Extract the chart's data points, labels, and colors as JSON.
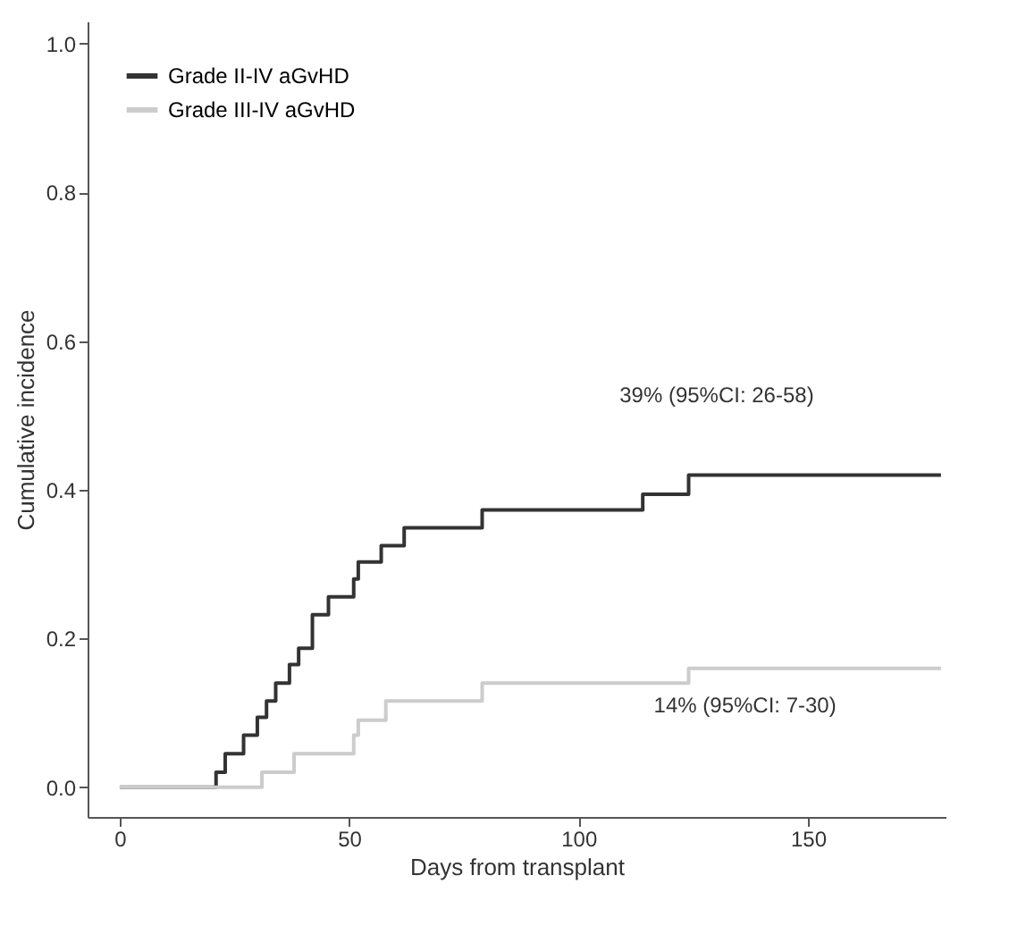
{
  "chart_data": {
    "type": "step",
    "xlabel": "Days from transplant",
    "ylabel": "Cumulative incidence",
    "xlim": [
      -7,
      180
    ],
    "ylim": [
      -0.04,
      1.03
    ],
    "xticks": [
      0,
      50,
      100,
      150
    ],
    "yticks": [
      {
        "value": 0,
        "label": "0.0"
      },
      {
        "value": 0.2,
        "label": "0.2"
      },
      {
        "value": 0.4,
        "label": "0.4"
      },
      {
        "value": 0.6,
        "label": "0.6"
      },
      {
        "value": 0.8,
        "label": "0.8"
      },
      {
        "value": 1,
        "label": "1.0"
      }
    ],
    "grid": false,
    "legend": "top left",
    "line_style": "solid",
    "annotations": [
      "39% (95%CI: 26-58)",
      "14% (95%CI: 7-30)"
    ],
    "series": [
      {
        "name": "Grade II-IV aGvHD",
        "color": "#333333",
        "x": [
          0,
          21,
          23,
          27,
          30,
          32,
          34,
          37,
          39,
          42,
          45.5,
          51,
          52,
          57,
          62,
          79,
          114,
          124,
          179
        ],
        "values": [
          0,
          0.02,
          0.045,
          0.07,
          0.094,
          0.116,
          0.14,
          0.165,
          0.187,
          0.232,
          0.256,
          0.28,
          0.303,
          0.325,
          0.349,
          0.373,
          0.394,
          0.42,
          0.42
        ]
      },
      {
        "name": "Grade III-IV aGvHD",
        "color": "#cccccc",
        "x": [
          0,
          31,
          38,
          51,
          52,
          58,
          79,
          124,
          179
        ],
        "values": [
          0,
          0.02,
          0.045,
          0.07,
          0.09,
          0.116,
          0.14,
          0.16,
          0.16
        ]
      }
    ]
  }
}
